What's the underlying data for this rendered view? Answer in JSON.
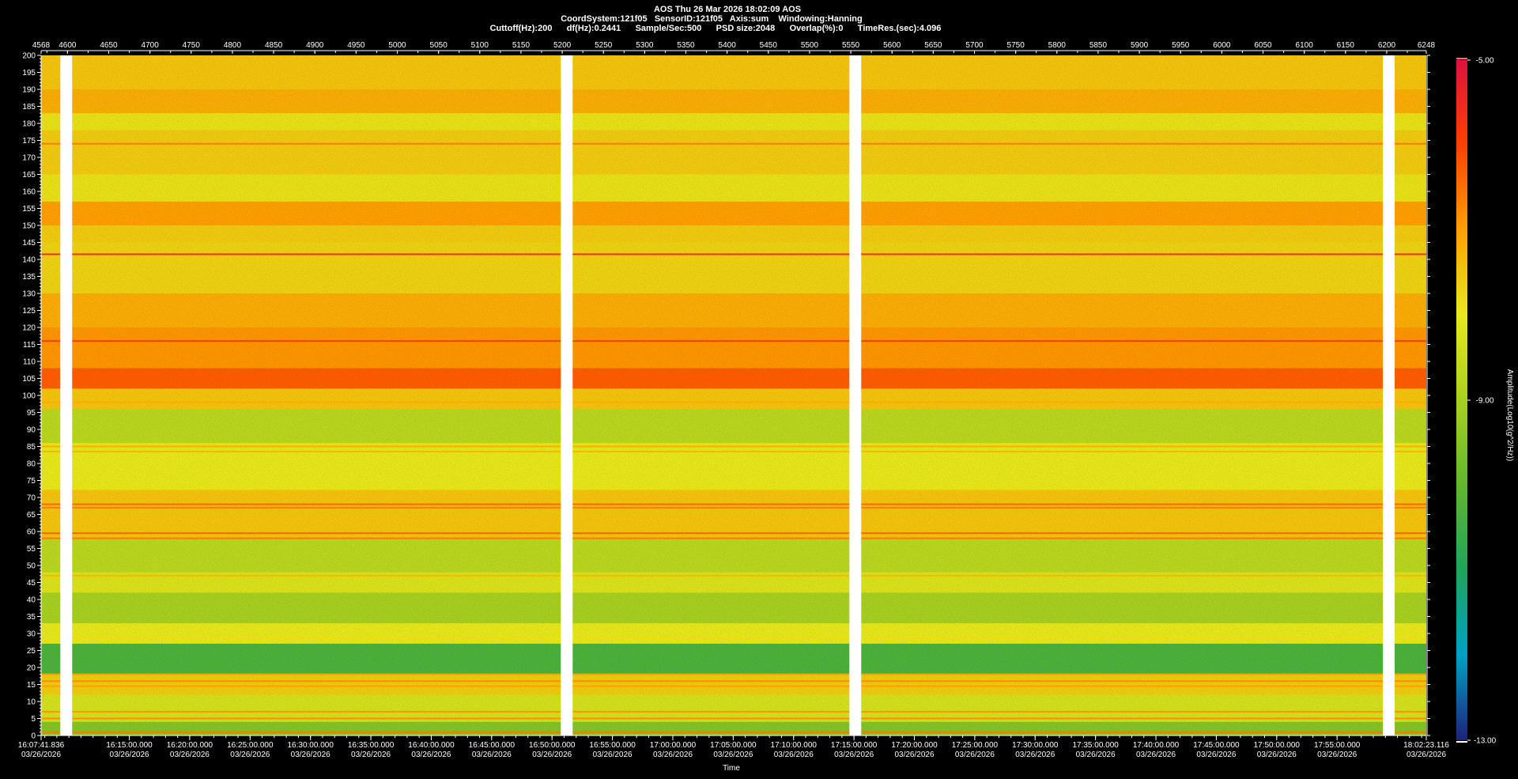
{
  "header": {
    "line1": "AOS  Thu 26 Mar 2026 18:02:09  AOS",
    "line2": "CoordSystem:121f05   SensorID:121f05   Axis:sum    Windowing:Hanning",
    "line3": "Cuttoff(Hz):200      df(Hz):0.2441      Sample/Sec:500      PSD size:2048      Overlap(%):0      TimeRes.(sec):4.096"
  },
  "colors": {
    "background": "#000000",
    "axis": "#ffffff",
    "gap": "#ffffff",
    "colormap": [
      "#1a237e",
      "#00a0c8",
      "#1fa45a",
      "#5fb82e",
      "#a8d020",
      "#e8e81a",
      "#ffa000",
      "#ff4000",
      "#e0103c"
    ]
  },
  "chart_data": {
    "type": "heatmap",
    "xlabel": "Time",
    "ylabel": "",
    "colorbar_label": "Amplitude(Log10(g^2/Hz))",
    "top_axis": {
      "range": [
        4568,
        6248
      ],
      "ticks": [
        4568,
        4600,
        4650,
        4700,
        4750,
        4800,
        4850,
        4900,
        4950,
        5000,
        5050,
        5100,
        5150,
        5200,
        5250,
        5300,
        5350,
        5400,
        5450,
        5500,
        5550,
        5600,
        5650,
        5700,
        5750,
        5800,
        5850,
        5900,
        5950,
        6000,
        6050,
        6100,
        6150,
        6200,
        6248
      ]
    },
    "y_axis": {
      "range": [
        0,
        200
      ],
      "ticks": [
        0,
        5,
        10,
        15,
        20,
        25,
        30,
        35,
        40,
        45,
        50,
        55,
        60,
        65,
        70,
        75,
        80,
        85,
        90,
        95,
        100,
        105,
        110,
        115,
        120,
        125,
        130,
        135,
        140,
        145,
        150,
        155,
        160,
        165,
        170,
        175,
        180,
        185,
        190,
        195,
        200
      ]
    },
    "time_axis": {
      "start_label": "16:07:41.836",
      "end_label": "18:02:23.116",
      "date": "03/26/2026",
      "tick_labels": [
        "16:15:00.000",
        "16:20:00.000",
        "16:25:00.000",
        "16:30:00.000",
        "16:35:00.000",
        "16:40:00.000",
        "16:45:00.000",
        "16:50:00.000",
        "16:55:00.000",
        "17:00:00.000",
        "17:05:00.000",
        "17:10:00.000",
        "17:15:00.000",
        "17:20:00.000",
        "17:25:00.000",
        "17:30:00.000",
        "17:35:00.000",
        "17:40:00.000",
        "17:45:00.000",
        "17:50:00.000",
        "17:55:00.000"
      ]
    },
    "colorbar": {
      "min": -13.0,
      "max": -5.0,
      "labels": [
        "-5.00",
        "-9.00",
        "-13.00"
      ]
    },
    "data_gaps_at": [
      4598,
      5205,
      5555,
      6202
    ],
    "bands": [
      {
        "from": 200,
        "to": 190,
        "level": -7.5
      },
      {
        "from": 190,
        "to": 183,
        "level": -7.2
      },
      {
        "from": 183,
        "to": 178,
        "level": -7.9
      },
      {
        "from": 178,
        "to": 165,
        "level": -7.6
      },
      {
        "from": 165,
        "to": 157,
        "level": -7.9
      },
      {
        "from": 157,
        "to": 150,
        "level": -7.0
      },
      {
        "from": 150,
        "to": 145,
        "level": -7.6
      },
      {
        "from": 145,
        "to": 130,
        "level": -7.7
      },
      {
        "from": 130,
        "to": 120,
        "level": -7.2
      },
      {
        "from": 120,
        "to": 108,
        "level": -6.9
      },
      {
        "from": 108,
        "to": 102,
        "level": -6.3
      },
      {
        "from": 102,
        "to": 96,
        "level": -7.5
      },
      {
        "from": 96,
        "to": 86,
        "level": -8.7
      },
      {
        "from": 86,
        "to": 72,
        "level": -8.0
      },
      {
        "from": 72,
        "to": 58,
        "level": -7.5
      },
      {
        "from": 58,
        "to": 48,
        "level": -8.7
      },
      {
        "from": 48,
        "to": 42,
        "level": -8.2
      },
      {
        "from": 42,
        "to": 33,
        "level": -9.0
      },
      {
        "from": 33,
        "to": 27,
        "level": -8.0
      },
      {
        "from": 27,
        "to": 18,
        "level": -10.3
      },
      {
        "from": 18,
        "to": 12,
        "level": -7.6
      },
      {
        "from": 12,
        "to": 4,
        "level": -8.3
      },
      {
        "from": 4,
        "to": 0,
        "level": -9.5
      }
    ],
    "lines": [
      {
        "hz": 174,
        "level": -6.6
      },
      {
        "hz": 141.5,
        "level": -5.6
      },
      {
        "hz": 116,
        "level": -5.8
      },
      {
        "hz": 98,
        "level": -7.2
      },
      {
        "hz": 85,
        "level": -7.2
      },
      {
        "hz": 83.5,
        "level": -7.3
      },
      {
        "hz": 72,
        "level": -7.4
      },
      {
        "hz": 68,
        "level": -6.4
      },
      {
        "hz": 67,
        "level": -6.6
      },
      {
        "hz": 59.5,
        "level": -6.4
      },
      {
        "hz": 58,
        "level": -6.6
      },
      {
        "hz": 47,
        "level": -7.3
      },
      {
        "hz": 18,
        "level": -7.0
      },
      {
        "hz": 16,
        "level": -6.8
      },
      {
        "hz": 14.5,
        "level": -7.0
      },
      {
        "hz": 7,
        "level": -6.9
      },
      {
        "hz": 5,
        "level": -6.8
      },
      {
        "hz": 1,
        "level": -6.6
      }
    ]
  }
}
